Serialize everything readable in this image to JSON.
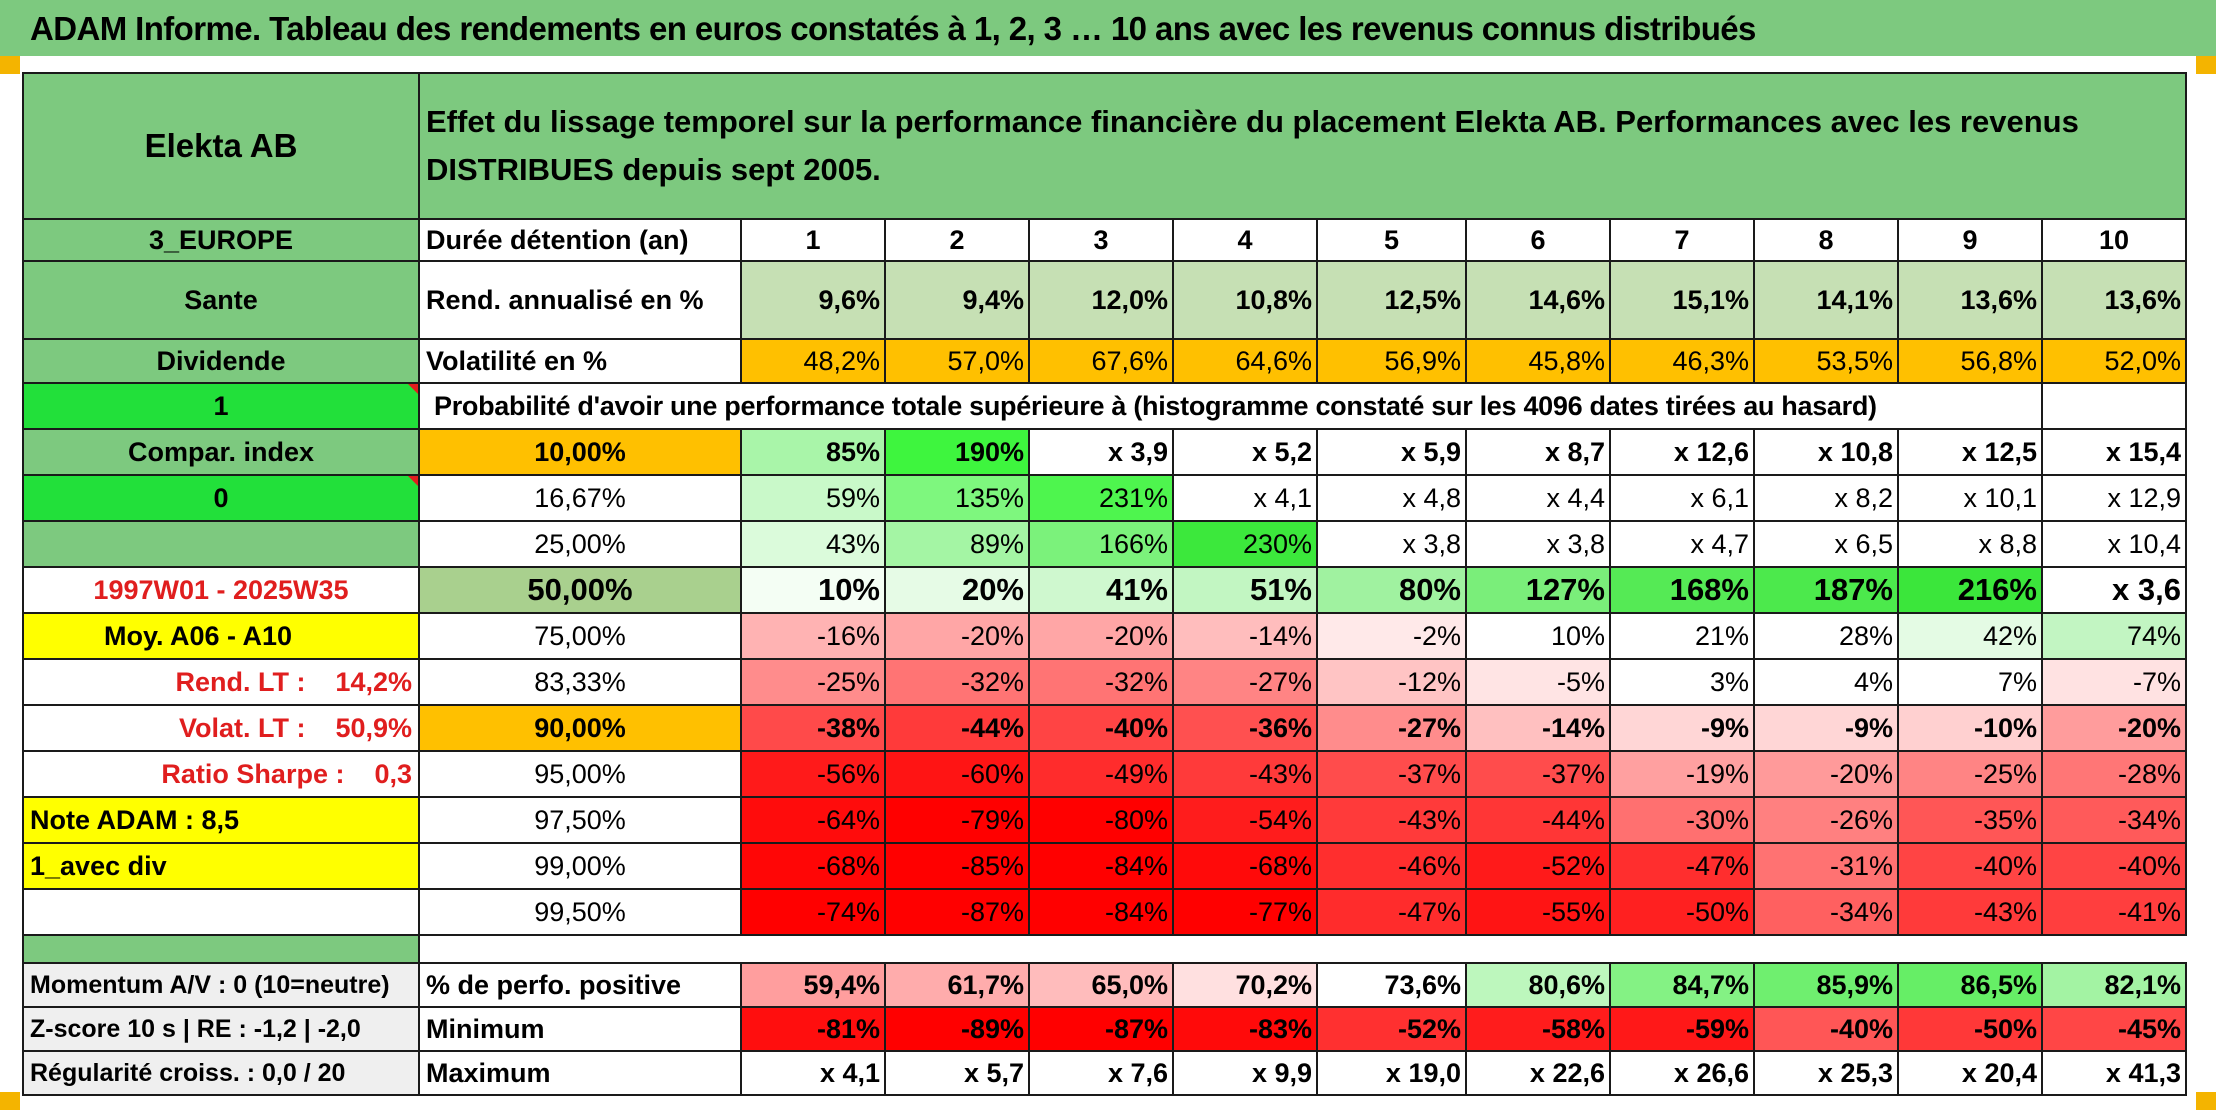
{
  "title": "ADAM Informe. Tableau des rendements en euros constatés à 1, 2, 3 … 10 ans avec les revenus connus distribués",
  "colors": {
    "green_bar": "#7dc97f",
    "bright_green": "#22e03a",
    "orange": "#ffc000",
    "yellow": "#ffff00",
    "red_text": "#e01e1e"
  },
  "header": {
    "fund_name": "Elekta AB",
    "description": "Effet du lissage temporel sur la performance financière du placement Elekta AB. Performances avec les revenus DISTRIBUES depuis sept 2005."
  },
  "left_panel": {
    "region": "3_EUROPE",
    "sector": "Sante",
    "income_type": "Dividende",
    "flag1": "1",
    "compar_label": "Compar. index",
    "flag0": "0",
    "period": "1997W01 - 2025W35",
    "moy": "Moy. A06 - A10",
    "rend_lt": "Rend. LT :    14,2%",
    "volat_lt": "Volat. LT :    50,9%",
    "sharpe": "Ratio Sharpe :    0,3",
    "note": "Note ADAM : 8,5",
    "option": "1_avec div"
  },
  "rows": {
    "duree_label": "Durée détention (an)",
    "years": [
      "1",
      "2",
      "3",
      "4",
      "5",
      "6",
      "7",
      "8",
      "9",
      "10"
    ],
    "rend_label": "Rend. annualisé en %",
    "rend": [
      "9,6%",
      "9,4%",
      "12,0%",
      "10,8%",
      "12,5%",
      "14,6%",
      "15,1%",
      "14,1%",
      "13,6%",
      "13,6%"
    ],
    "vol_label": "Volatilité en %",
    "vol": [
      "48,2%",
      "57,0%",
      "67,6%",
      "64,6%",
      "56,9%",
      "45,8%",
      "46,3%",
      "53,5%",
      "56,8%",
      "52,0%"
    ],
    "prob_label": "Probabilité d'avoir une performance totale supérieure à (histogramme constaté sur les 4096 dates tirées au hasard)",
    "quantiles": [
      {
        "p": "10,00%",
        "v": [
          "85%",
          "190%",
          "x 3,9",
          "x 5,2",
          "x 5,9",
          "x 8,7",
          "x 12,6",
          "x 10,8",
          "x 12,5",
          "x 15,4"
        ]
      },
      {
        "p": "16,67%",
        "v": [
          "59%",
          "135%",
          "231%",
          "x 4,1",
          "x 4,8",
          "x 4,4",
          "x 6,1",
          "x 8,2",
          "x 10,1",
          "x 12,9"
        ]
      },
      {
        "p": "25,00%",
        "v": [
          "43%",
          "89%",
          "166%",
          "230%",
          "x 3,8",
          "x 3,8",
          "x 4,7",
          "x 6,5",
          "x 8,8",
          "x 10,4"
        ]
      },
      {
        "p": "50,00%",
        "v": [
          "10%",
          "20%",
          "41%",
          "51%",
          "80%",
          "127%",
          "168%",
          "187%",
          "216%",
          "x 3,6"
        ]
      },
      {
        "p": "75,00%",
        "v": [
          "-16%",
          "-20%",
          "-20%",
          "-14%",
          "-2%",
          "10%",
          "21%",
          "28%",
          "42%",
          "74%"
        ]
      },
      {
        "p": "83,33%",
        "v": [
          "-25%",
          "-32%",
          "-32%",
          "-27%",
          "-12%",
          "-5%",
          "3%",
          "4%",
          "7%",
          "-7%"
        ]
      },
      {
        "p": "90,00%",
        "v": [
          "-38%",
          "-44%",
          "-40%",
          "-36%",
          "-27%",
          "-14%",
          "-9%",
          "-9%",
          "-10%",
          "-20%"
        ]
      },
      {
        "p": "95,00%",
        "v": [
          "-56%",
          "-60%",
          "-49%",
          "-43%",
          "-37%",
          "-37%",
          "-19%",
          "-20%",
          "-25%",
          "-28%"
        ]
      },
      {
        "p": "97,50%",
        "v": [
          "-64%",
          "-79%",
          "-80%",
          "-54%",
          "-43%",
          "-44%",
          "-30%",
          "-26%",
          "-35%",
          "-34%"
        ]
      },
      {
        "p": "99,00%",
        "v": [
          "-68%",
          "-85%",
          "-84%",
          "-68%",
          "-46%",
          "-52%",
          "-47%",
          "-31%",
          "-40%",
          "-40%"
        ]
      },
      {
        "p": "99,50%",
        "v": [
          "-74%",
          "-87%",
          "-84%",
          "-77%",
          "-47%",
          "-55%",
          "-50%",
          "-34%",
          "-43%",
          "-41%"
        ]
      }
    ],
    "bottom": [
      {
        "left": "Momentum A/V : 0 (10=neutre)",
        "label": "% de perfo. positive",
        "v": [
          "59,4%",
          "61,7%",
          "65,0%",
          "70,2%",
          "73,6%",
          "80,6%",
          "84,7%",
          "85,9%",
          "86,5%",
          "82,1%"
        ]
      },
      {
        "left": "Z-score 10 s | RE : -1,2 | -2,0",
        "label": "Minimum",
        "v": [
          "-81%",
          "-89%",
          "-87%",
          "-83%",
          "-52%",
          "-58%",
          "-59%",
          "-40%",
          "-50%",
          "-45%"
        ]
      },
      {
        "left": "Régularité croiss. : 0,0 / 20",
        "label": "Maximum",
        "v": [
          "x 4,1",
          "x 5,7",
          "x 7,6",
          "x 9,9",
          "x 19,0",
          "x 22,6",
          "x 26,6",
          "x 25,3",
          "x 20,4",
          "x 41,3"
        ]
      }
    ]
  },
  "cell_colors": {
    "rend": [
      "#c6e0b4",
      "#c6e0b4",
      "#c6e0b4",
      "#c6e0b4",
      "#c6e0b4",
      "#c6e0b4",
      "#c6e0b4",
      "#c6e0b4",
      "#c6e0b4",
      "#c6e0b4"
    ],
    "vol": [
      "#ffc000",
      "#ffc000",
      "#ffc000",
      "#ffc000",
      "#ffc000",
      "#ffc000",
      "#ffc000",
      "#ffc000",
      "#ffc000",
      "#ffc000"
    ],
    "quantiles": [
      [
        "#a9f5a9",
        "#3ef53e",
        "#ffffff",
        "#ffffff",
        "#ffffff",
        "#ffffff",
        "#ffffff",
        "#ffffff",
        "#ffffff",
        "#ffffff"
      ],
      [
        "#c9f9c9",
        "#7ef77e",
        "#4ef54e",
        "#ffffff",
        "#ffffff",
        "#ffffff",
        "#ffffff",
        "#ffffff",
        "#ffffff",
        "#ffffff"
      ],
      [
        "#dbfbdb",
        "#a4f5a4",
        "#7bf27b",
        "#3ce83c",
        "#ffffff",
        "#ffffff",
        "#ffffff",
        "#ffffff",
        "#ffffff",
        "#ffffff"
      ],
      [
        "#f4fef4",
        "#e6fbe6",
        "#cff8cf",
        "#c2f6c2",
        "#a0f2a0",
        "#7aee7a",
        "#55ea55",
        "#4ce94c",
        "#3be63b",
        "#ffffff"
      ],
      [
        "#ffb3b3",
        "#ffa6a6",
        "#ffa6a6",
        "#ffbdbd",
        "#ffe9e9",
        "#ffffff",
        "#ffffff",
        "#ffffff",
        "#e4fbe4",
        "#c2f5c2"
      ],
      [
        "#ff8c8c",
        "#ff7474",
        "#ff7474",
        "#ff8484",
        "#ffc4c4",
        "#ffe4e4",
        "#ffffff",
        "#ffffff",
        "#ffffff",
        "#ffe2e2"
      ],
      [
        "#ff4a4a",
        "#ff3a3a",
        "#ff4444",
        "#ff5050",
        "#ff8c8c",
        "#ffc0c0",
        "#ffd6d6",
        "#ffd6d6",
        "#ffd0d0",
        "#ff9c9c"
      ],
      [
        "#ff1a1a",
        "#ff1414",
        "#ff2c2c",
        "#ff3a3a",
        "#ff4c4c",
        "#ff4c4c",
        "#ffa0a0",
        "#ff9a9a",
        "#ff8484",
        "#ff7676"
      ],
      [
        "#ff0c0c",
        "#ff0000",
        "#ff0000",
        "#ff1c1c",
        "#ff3a3a",
        "#ff3636",
        "#ff7070",
        "#ff8080",
        "#ff5656",
        "#ff5a5a"
      ],
      [
        "#ff0606",
        "#ff0000",
        "#ff0000",
        "#ff0a0a",
        "#ff2e2e",
        "#ff1a1a",
        "#ff2e2e",
        "#ff7272",
        "#ff4444",
        "#ff4444"
      ],
      [
        "#ff0000",
        "#ff0000",
        "#ff0000",
        "#ff0000",
        "#ff2c2c",
        "#ff1414",
        "#ff2020",
        "#ff6060",
        "#ff3a3a",
        "#ff3e3e"
      ]
    ],
    "bottom": [
      [
        "#ff9e9e",
        "#ffacac",
        "#ffbcbc",
        "#ffe0e0",
        "#ffffff",
        "#bdf7bd",
        "#84f284",
        "#6fef6f",
        "#66ee66",
        "#a3f3a3"
      ],
      [
        "#ff0e0e",
        "#ff0000",
        "#ff0000",
        "#ff0a0a",
        "#ff3030",
        "#ff1c1c",
        "#ff1818",
        "#ff5656",
        "#ff3838",
        "#ff4646"
      ],
      [
        "#ffffff",
        "#ffffff",
        "#ffffff",
        "#ffffff",
        "#ffffff",
        "#ffffff",
        "#ffffff",
        "#ffffff",
        "#ffffff",
        "#ffffff"
      ]
    ]
  }
}
